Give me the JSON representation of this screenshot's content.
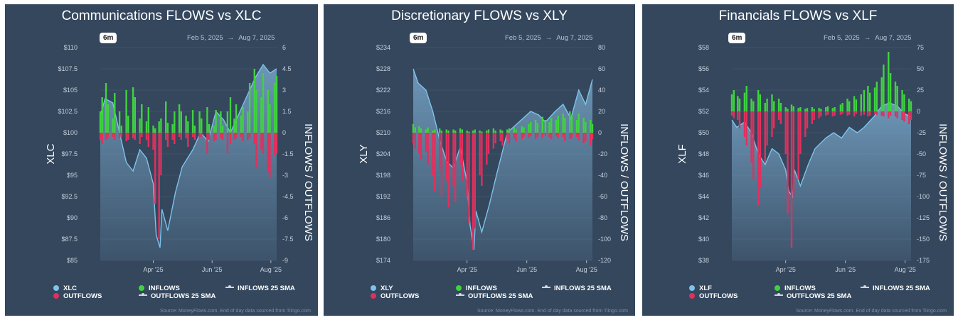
{
  "colors": {
    "panel_bg": "#34475d",
    "price_line": "#7ec3ea",
    "inflows": "#3fd33f",
    "outflows": "#e0305e",
    "grid": "#4a5d72",
    "axis_text": "#c7d0db"
  },
  "legend": {
    "inflows": "INFLOWS",
    "outflows": "OUTFLOWS",
    "inflows_sma": "INFLOWS 25 SMA",
    "outflows_sma": "OUTFLOWS 25 SMA"
  },
  "source_text": "Source: MoneyFlows.com. End of day data sourced from Tiingo.com",
  "chart_data": [
    {
      "type": "line",
      "title": "Communications FLOWS vs XLC",
      "ticker": "XLC",
      "range_button": "6m",
      "date_start": "Feb 5, 2025",
      "date_arrow": "→",
      "date_end": "Aug 7, 2025",
      "ylabel_left": "XLC",
      "ylabel_right": "INFLOWS / OUTFLOWS",
      "left_ticks": [
        "$110",
        "$107.5",
        "$105",
        "$102.5",
        "$100",
        "$97.5",
        "$95",
        "$92.5",
        "$90",
        "$87.5",
        "$85"
      ],
      "right_ticks": [
        "6",
        "4.5",
        "3",
        "1.5",
        "0",
        "-1.5",
        "-3",
        "-4.5",
        "-6",
        "-7.5",
        "-9"
      ],
      "x_ticks": [
        "Apr '25",
        "Jun '25",
        "Aug '25"
      ],
      "x_tick_dates": [
        "2025-04-01",
        "2025-06-01",
        "2025-08-01"
      ],
      "left_ylim": [
        85,
        110
      ],
      "right_ylim": [
        -9,
        6
      ],
      "price": {
        "dates": [
          "2025-02-05",
          "2025-02-10",
          "2025-02-18",
          "2025-02-25",
          "2025-03-04",
          "2025-03-11",
          "2025-03-18",
          "2025-03-25",
          "2025-04-01",
          "2025-04-04",
          "2025-04-08",
          "2025-04-10",
          "2025-04-16",
          "2025-04-24",
          "2025-05-01",
          "2025-05-12",
          "2025-05-20",
          "2025-05-28",
          "2025-06-05",
          "2025-06-13",
          "2025-06-20",
          "2025-06-30",
          "2025-07-08",
          "2025-07-16",
          "2025-07-24",
          "2025-07-31",
          "2025-08-07"
        ],
        "values": [
          102.0,
          104.0,
          103.5,
          100.0,
          96.5,
          95.5,
          98.0,
          97.0,
          94.0,
          88.0,
          86.5,
          91.0,
          88.5,
          93.0,
          96.0,
          98.0,
          100.0,
          99.0,
          102.5,
          101.5,
          100.0,
          102.5,
          104.5,
          106.5,
          108.0,
          107.0,
          107.5
        ]
      },
      "flows": {
        "dates": [
          "2025-02-05",
          "2025-02-07",
          "2025-02-11",
          "2025-02-13",
          "2025-02-18",
          "2025-02-20",
          "2025-02-25",
          "2025-02-27",
          "2025-03-04",
          "2025-03-06",
          "2025-03-11",
          "2025-03-13",
          "2025-03-18",
          "2025-03-20",
          "2025-03-25",
          "2025-03-27",
          "2025-04-01",
          "2025-04-03",
          "2025-04-07",
          "2025-04-09",
          "2025-04-14",
          "2025-04-16",
          "2025-04-21",
          "2025-04-23",
          "2025-04-28",
          "2025-04-30",
          "2025-05-05",
          "2025-05-07",
          "2025-05-12",
          "2025-05-14",
          "2025-05-19",
          "2025-05-21",
          "2025-05-27",
          "2025-05-29",
          "2025-06-03",
          "2025-06-05",
          "2025-06-10",
          "2025-06-12",
          "2025-06-17",
          "2025-06-20",
          "2025-06-24",
          "2025-06-26",
          "2025-07-01",
          "2025-07-03",
          "2025-07-08",
          "2025-07-10",
          "2025-07-15",
          "2025-07-17",
          "2025-07-22",
          "2025-07-24",
          "2025-07-29",
          "2025-07-31",
          "2025-08-05",
          "2025-08-07"
        ],
        "inflows": [
          1.5,
          2.5,
          3.5,
          2.0,
          1.0,
          2.8,
          1.5,
          0.5,
          3.0,
          1.2,
          3.2,
          2.5,
          1.0,
          2.0,
          0.8,
          1.8,
          0.5,
          0.3,
          0.8,
          1.0,
          2.2,
          0.7,
          0.6,
          1.5,
          2.0,
          1.5,
          1.2,
          0.8,
          1.6,
          0.5,
          1.5,
          1.0,
          1.8,
          0.6,
          0.5,
          1.6,
          1.5,
          0.5,
          1.5,
          2.5,
          1.0,
          2.0,
          1.2,
          1.8,
          1.5,
          3.5,
          4.5,
          3.0,
          2.5,
          4.2,
          3.0,
          2.0,
          3.5,
          4.0
        ],
        "outflows": [
          -0.5,
          -0.8,
          -0.5,
          -0.4,
          -0.3,
          -0.5,
          -0.4,
          -0.3,
          -0.6,
          -0.5,
          -0.4,
          -0.5,
          -0.8,
          -0.3,
          -0.5,
          -1.0,
          -1.2,
          -5.0,
          -7.5,
          -3.0,
          -0.5,
          -1.0,
          -0.5,
          -0.8,
          -0.3,
          -0.5,
          -0.4,
          -1.0,
          -0.3,
          -0.5,
          -0.4,
          -0.3,
          -1.5,
          -0.5,
          -0.6,
          -0.5,
          -0.4,
          -0.5,
          -1.5,
          -0.8,
          -0.5,
          -0.4,
          -0.3,
          -0.6,
          -0.5,
          -0.4,
          -0.8,
          -2.5,
          -1.2,
          -1.5,
          -2.8,
          -3.2,
          -1.6,
          -1.5
        ]
      }
    },
    {
      "type": "line",
      "title": "Discretionary FLOWS vs XLY",
      "ticker": "XLY",
      "range_button": "6m",
      "date_start": "Feb 5, 2025",
      "date_arrow": "→",
      "date_end": "Aug 7, 2025",
      "ylabel_left": "XLY",
      "ylabel_right": "INFLOWS / OUTFLOWS",
      "left_ticks": [
        "$234",
        "$228",
        "$222",
        "$216",
        "$210",
        "$204",
        "$198",
        "$192",
        "$186",
        "$180",
        "$174"
      ],
      "right_ticks": [
        "80",
        "60",
        "40",
        "20",
        "0",
        "-20",
        "-40",
        "-60",
        "-80",
        "-100",
        "-120"
      ],
      "x_ticks": [
        "Apr '25",
        "Jun '25",
        "Aug '25"
      ],
      "x_tick_dates": [
        "2025-04-01",
        "2025-06-01",
        "2025-08-01"
      ],
      "left_ylim": [
        174,
        234
      ],
      "right_ylim": [
        -120,
        80
      ],
      "price": {
        "dates": [
          "2025-02-05",
          "2025-02-10",
          "2025-02-18",
          "2025-02-25",
          "2025-03-04",
          "2025-03-11",
          "2025-03-18",
          "2025-03-25",
          "2025-04-01",
          "2025-04-04",
          "2025-04-08",
          "2025-04-10",
          "2025-04-16",
          "2025-04-24",
          "2025-05-01",
          "2025-05-12",
          "2025-05-20",
          "2025-05-28",
          "2025-06-05",
          "2025-06-13",
          "2025-06-20",
          "2025-06-30",
          "2025-07-08",
          "2025-07-16",
          "2025-07-24",
          "2025-07-31",
          "2025-08-07"
        ],
        "values": [
          228.0,
          224.0,
          222.0,
          216.0,
          208.0,
          202.0,
          200.0,
          206.0,
          196.0,
          184.0,
          177.0,
          188.0,
          182.0,
          190.0,
          198.0,
          210.0,
          212.0,
          214.0,
          216.0,
          215.0,
          213.0,
          216.0,
          218.0,
          214.0,
          222.0,
          218.0,
          225.0
        ]
      },
      "flows": {
        "dates": [
          "2025-02-05",
          "2025-02-07",
          "2025-02-11",
          "2025-02-13",
          "2025-02-18",
          "2025-02-20",
          "2025-02-25",
          "2025-02-27",
          "2025-03-04",
          "2025-03-06",
          "2025-03-11",
          "2025-03-13",
          "2025-03-18",
          "2025-03-20",
          "2025-03-25",
          "2025-03-27",
          "2025-04-01",
          "2025-04-03",
          "2025-04-07",
          "2025-04-09",
          "2025-04-14",
          "2025-04-16",
          "2025-04-21",
          "2025-04-23",
          "2025-04-28",
          "2025-04-30",
          "2025-05-05",
          "2025-05-07",
          "2025-05-12",
          "2025-05-14",
          "2025-05-19",
          "2025-05-21",
          "2025-05-27",
          "2025-05-29",
          "2025-06-03",
          "2025-06-05",
          "2025-06-10",
          "2025-06-12",
          "2025-06-17",
          "2025-06-20",
          "2025-06-24",
          "2025-06-26",
          "2025-07-01",
          "2025-07-03",
          "2025-07-08",
          "2025-07-10",
          "2025-07-15",
          "2025-07-17",
          "2025-07-22",
          "2025-07-24",
          "2025-07-29",
          "2025-07-31",
          "2025-08-05",
          "2025-08-07"
        ],
        "inflows": [
          8,
          5,
          6,
          4,
          3,
          5,
          2,
          3,
          4,
          2,
          3,
          2,
          3,
          2,
          4,
          3,
          2,
          1,
          2,
          3,
          2,
          1,
          2,
          3,
          4,
          2,
          3,
          2,
          3,
          4,
          5,
          3,
          6,
          5,
          8,
          10,
          12,
          9,
          15,
          12,
          10,
          14,
          12,
          16,
          18,
          14,
          20,
          16,
          12,
          18,
          14,
          10,
          12,
          8
        ],
        "outflows": [
          -10,
          -15,
          -20,
          -25,
          -18,
          -30,
          -40,
          -55,
          -35,
          -60,
          -45,
          -70,
          -50,
          -65,
          -30,
          -45,
          -60,
          -85,
          -110,
          -90,
          -40,
          -50,
          -30,
          -20,
          -15,
          -10,
          -8,
          -12,
          -6,
          -10,
          -5,
          -8,
          -6,
          -4,
          -5,
          -3,
          -6,
          -4,
          -5,
          -3,
          -4,
          -6,
          -3,
          -5,
          -4,
          -8,
          -6,
          -5,
          -4,
          -7,
          -10,
          -8,
          -12,
          -6
        ]
      }
    },
    {
      "type": "line",
      "title": "Financials FLOWS vs XLF",
      "ticker": "XLF",
      "range_button": "6m",
      "date_start": "Feb 5, 2025",
      "date_arrow": "→",
      "date_end": "Aug 7, 2025",
      "ylabel_left": "XLF",
      "ylabel_right": "INFLOWS / OUTFLOWS",
      "left_ticks": [
        "$58",
        "$56",
        "$54",
        "$52",
        "$50",
        "$48",
        "$46",
        "$44",
        "$42",
        "$40",
        "$38"
      ],
      "right_ticks": [
        "75",
        "50",
        "25",
        "0",
        "-25",
        "-50",
        "-75",
        "-100",
        "-125",
        "-150",
        "-175"
      ],
      "x_ticks": [
        "Apr '25",
        "Jun '25",
        "Aug '25"
      ],
      "x_tick_dates": [
        "2025-04-01",
        "2025-06-01",
        "2025-08-01"
      ],
      "left_ylim": [
        38,
        58
      ],
      "right_ylim": [
        -175,
        75
      ],
      "price": {
        "dates": [
          "2025-02-05",
          "2025-02-10",
          "2025-02-18",
          "2025-02-25",
          "2025-03-04",
          "2025-03-11",
          "2025-03-18",
          "2025-03-25",
          "2025-04-01",
          "2025-04-04",
          "2025-04-08",
          "2025-04-10",
          "2025-04-16",
          "2025-04-24",
          "2025-05-01",
          "2025-05-12",
          "2025-05-20",
          "2025-05-28",
          "2025-06-05",
          "2025-06-13",
          "2025-06-20",
          "2025-06-30",
          "2025-07-08",
          "2025-07-16",
          "2025-07-24",
          "2025-07-31",
          "2025-08-07"
        ],
        "values": [
          51.2,
          50.5,
          51.0,
          50.0,
          48.0,
          47.0,
          48.5,
          48.0,
          46.5,
          44.5,
          44.0,
          46.5,
          45.0,
          47.0,
          48.5,
          49.5,
          50.0,
          49.5,
          50.5,
          50.0,
          50.5,
          51.5,
          52.5,
          52.8,
          52.5,
          51.8,
          51.5
        ]
      },
      "flows": {
        "dates": [
          "2025-02-05",
          "2025-02-07",
          "2025-02-11",
          "2025-02-13",
          "2025-02-18",
          "2025-02-20",
          "2025-02-25",
          "2025-02-27",
          "2025-03-04",
          "2025-03-06",
          "2025-03-11",
          "2025-03-13",
          "2025-03-18",
          "2025-03-20",
          "2025-03-25",
          "2025-03-27",
          "2025-04-01",
          "2025-04-03",
          "2025-04-07",
          "2025-04-09",
          "2025-04-14",
          "2025-04-16",
          "2025-04-21",
          "2025-04-23",
          "2025-04-28",
          "2025-04-30",
          "2025-05-05",
          "2025-05-07",
          "2025-05-12",
          "2025-05-14",
          "2025-05-19",
          "2025-05-21",
          "2025-05-27",
          "2025-05-29",
          "2025-06-03",
          "2025-06-05",
          "2025-06-10",
          "2025-06-12",
          "2025-06-17",
          "2025-06-20",
          "2025-06-24",
          "2025-06-26",
          "2025-07-01",
          "2025-07-03",
          "2025-07-08",
          "2025-07-10",
          "2025-07-15",
          "2025-07-17",
          "2025-07-22",
          "2025-07-24",
          "2025-07-29",
          "2025-07-31",
          "2025-08-05",
          "2025-08-07"
        ],
        "inflows": [
          20,
          25,
          18,
          15,
          22,
          30,
          15,
          12,
          25,
          20,
          10,
          15,
          20,
          12,
          15,
          10,
          5,
          3,
          8,
          6,
          4,
          5,
          3,
          4,
          5,
          3,
          4,
          3,
          5,
          6,
          4,
          5,
          8,
          10,
          15,
          12,
          18,
          14,
          20,
          25,
          30,
          22,
          28,
          35,
          40,
          55,
          70,
          45,
          35,
          30,
          25,
          20,
          15,
          12
        ],
        "outflows": [
          -5,
          -8,
          -10,
          -20,
          -30,
          -40,
          -60,
          -80,
          -110,
          -90,
          -60,
          -40,
          -30,
          -20,
          -10,
          -15,
          -50,
          -120,
          -160,
          -100,
          -80,
          -50,
          -30,
          -20,
          -15,
          -10,
          -8,
          -6,
          -5,
          -4,
          -6,
          -5,
          -4,
          -3,
          -5,
          -4,
          -6,
          -3,
          -5,
          -4,
          -6,
          -5,
          -3,
          -4,
          -5,
          -6,
          -8,
          -5,
          -6,
          -8,
          -10,
          -12,
          -15,
          -10
        ]
      }
    }
  ]
}
